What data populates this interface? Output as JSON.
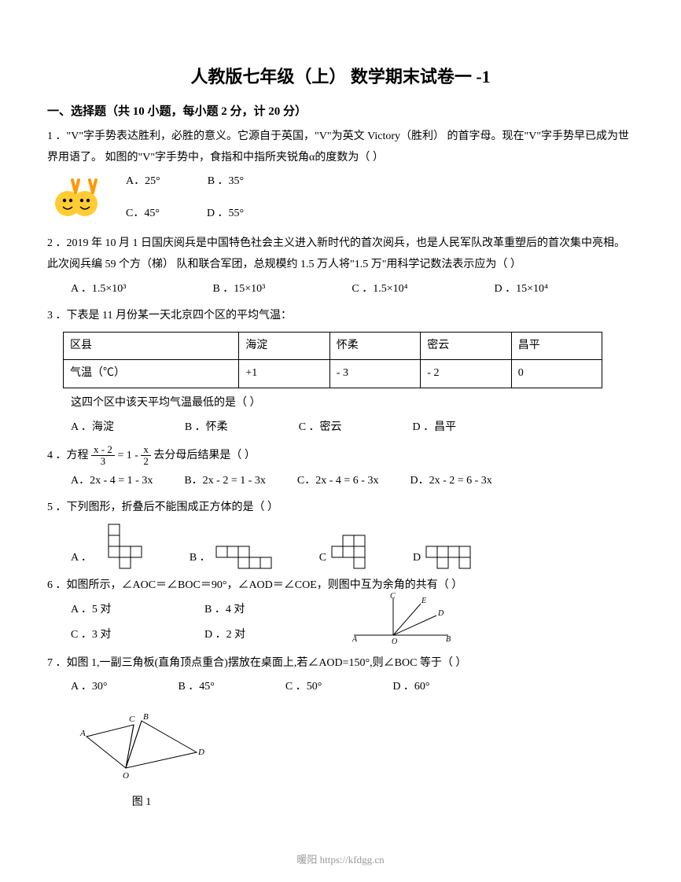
{
  "title": "人教版七年级（上）  数学期末试卷一  -1",
  "section1": "一、选择题（共 10 小题，每小题 2 分，计 20 分）",
  "q1": {
    "text": "1 ．\"V\"字手势表达胜利，必胜的意义。它源自于英国，\"V\"为英文 Victory（胜利）  的首字母。现在\"V\"字手势早已成为世界用语了。  如图的\"V\"字手势中，食指和中指所夹锐角α的度数为（      ）",
    "a": "A．25°",
    "b": "B ．35°",
    "c": "C．45°",
    "d": "D ．55°"
  },
  "q2": {
    "text": "2 ．2019 年 10 月 1 日国庆阅兵是中国特色社会主义进入新时代的首次阅兵，也是人民军队改革重塑后的首次集中亮相。此次阅兵编 59 个方（梯）  队和联合军团，总规模约 1.5 万人将\"1.5 万\"用科学记数法表示应为（      ）",
    "a": "A ．1.5×10³",
    "b": "B ．15×10³",
    "c": "C ．1.5×10⁴",
    "d": "D ．15×10⁴"
  },
  "q3": {
    "text": "3 ．下表是 11 月份某一天北京四个区的平均气温：",
    "table": {
      "headers": [
        "区县",
        "海淀",
        "怀柔",
        "密云",
        "昌平"
      ],
      "row_label": "气温（℃）",
      "values": [
        "+1",
        "- 3",
        "- 2",
        "0"
      ]
    },
    "caption": "这四个区中该天平均气温最低的是（      ）",
    "a": "A ．海淀",
    "b": "B ．怀柔",
    "c": "C ．密云",
    "d": "D ．昌平"
  },
  "q4": {
    "prefix": "4 ．方程 ",
    "frac1_num": "x - 2",
    "frac1_den": "3",
    "mid": " = 1 - ",
    "frac2_num": "x",
    "frac2_den": "2",
    "suffix": " 去分母后结果是（      ）",
    "a": "A．2x  -  4 = 1  -  3x",
    "b": "B．2x  -  2 = 1  -  3x",
    "c": "C．2x  -  4 = 6  -  3x",
    "d": "D．2x  -  2 = 6  -  3x"
  },
  "q5": {
    "text": "5 ．下列图形，折叠后不能围成正方体的是（      ）",
    "a": "A ．",
    "b": "B ．",
    "c": "C",
    "d": "D",
    "nets": {
      "cell": 14,
      "stroke": "#000000",
      "fill": "#ffffff",
      "A": [
        [
          1,
          0
        ],
        [
          1,
          1
        ],
        [
          1,
          2
        ],
        [
          2,
          2
        ],
        [
          3,
          2
        ],
        [
          2,
          3
        ]
      ],
      "B": [
        [
          0,
          0
        ],
        [
          1,
          0
        ],
        [
          2,
          0
        ],
        [
          2,
          1
        ],
        [
          3,
          1
        ],
        [
          4,
          1
        ]
      ],
      "C": [
        [
          1,
          0
        ],
        [
          2,
          0
        ],
        [
          0,
          1
        ],
        [
          1,
          1
        ],
        [
          2,
          1
        ],
        [
          2,
          2
        ]
      ],
      "D": [
        [
          0,
          0
        ],
        [
          1,
          0
        ],
        [
          2,
          0
        ],
        [
          3,
          0
        ],
        [
          1,
          1
        ],
        [
          3,
          1
        ]
      ]
    }
  },
  "q6": {
    "text": "6 ．如图所示，∠AOC＝∠BOC＝90°，∠AOD＝∠COE，则图中互为余角的共有（      ）",
    "a": "A ．5 对",
    "b": "B ．4 对",
    "c": "C ．3 对",
    "d": "D ．2 对",
    "diagram": {
      "labels": {
        "O": "O",
        "A": "A",
        "B": "B",
        "C": "C",
        "D": "D",
        "E": "E"
      },
      "stroke": "#000000"
    }
  },
  "q7": {
    "text": "7 ．如图 1,一副三角板(直角顶点重合)摆放在桌面上,若∠AOD=150°,则∠BOC 等于（      ）",
    "a": "A ．30°",
    "b": "B ．45°",
    "c": "C ．50°",
    "d": "D ．60°",
    "caption": "图 1",
    "diagram": {
      "labels": {
        "O": "O",
        "A": "A",
        "B": "B",
        "C": "C",
        "D": "D"
      },
      "stroke": "#000000"
    }
  },
  "footer": "暖阳 https://kfdgg.cn"
}
